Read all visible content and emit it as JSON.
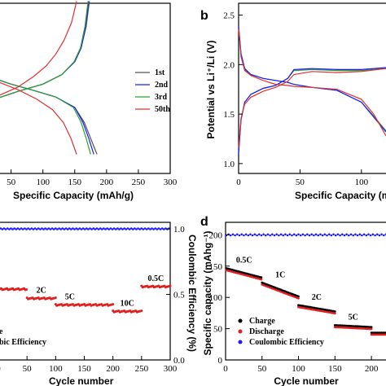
{
  "chart_data": [
    {
      "panel": "a",
      "type": "line",
      "xlabel": "Specific Capacity (mAh/g)",
      "xticks": [
        "50",
        "100",
        "150",
        "200",
        "250",
        "300"
      ],
      "xlim": [
        30,
        300
      ],
      "ylim": [
        1.0,
        2.6
      ],
      "legend_position": "right",
      "series": [
        {
          "name": "1st",
          "color": "#555555",
          "curves": [
            {
              "x": [
                0,
                30,
                50,
                80,
                120,
                150,
                165,
                175,
                185
              ],
              "y": [
                1.93,
                1.88,
                1.84,
                1.79,
                1.72,
                1.62,
                1.48,
                1.33,
                1.18
              ]
            },
            {
              "x": [
                0,
                30,
                60,
                100,
                130,
                150,
                160,
                168,
                173
              ],
              "y": [
                1.62,
                1.71,
                1.77,
                1.84,
                1.93,
                2.05,
                2.18,
                2.38,
                2.62
              ]
            }
          ]
        },
        {
          "name": "2nd",
          "color": "#1a1aff",
          "curves": [
            {
              "x": [
                0,
                30,
                50,
                80,
                120,
                150,
                163,
                172,
                180
              ],
              "y": [
                1.93,
                1.88,
                1.84,
                1.79,
                1.72,
                1.62,
                1.48,
                1.33,
                1.18
              ]
            },
            {
              "x": [
                0,
                30,
                60,
                100,
                130,
                150,
                160,
                167,
                172
              ],
              "y": [
                1.62,
                1.71,
                1.77,
                1.84,
                1.93,
                2.05,
                2.18,
                2.38,
                2.62
              ]
            }
          ]
        },
        {
          "name": "3rd",
          "color": "#2ca02c",
          "curves": [
            {
              "x": [
                0,
                30,
                50,
                80,
                120,
                148,
                160,
                168,
                175
              ],
              "y": [
                1.93,
                1.88,
                1.84,
                1.79,
                1.72,
                1.62,
                1.48,
                1.33,
                1.18
              ]
            },
            {
              "x": [
                0,
                30,
                60,
                100,
                130,
                149,
                159,
                166,
                171
              ],
              "y": [
                1.62,
                1.71,
                1.77,
                1.84,
                1.93,
                2.05,
                2.18,
                2.38,
                2.62
              ]
            }
          ]
        },
        {
          "name": "50th",
          "color": "#e03030",
          "curves": [
            {
              "x": [
                0,
                30,
                60,
                90,
                115,
                132,
                144,
                153
              ],
              "y": [
                1.93,
                1.86,
                1.79,
                1.7,
                1.6,
                1.48,
                1.33,
                1.18
              ]
            },
            {
              "x": [
                0,
                30,
                60,
                85,
                105,
                120,
                133,
                145,
                153
              ],
              "y": [
                1.62,
                1.73,
                1.81,
                1.91,
                2.01,
                2.12,
                2.25,
                2.42,
                2.62
              ]
            }
          ]
        }
      ]
    },
    {
      "panel": "b",
      "type": "line",
      "xlabel": "Specific Capacity (m",
      "ylabel": "Potential vs Li⁺/Li (V)",
      "xticks": [
        "0",
        "50",
        "100"
      ],
      "yticks": [
        "1.0",
        "1.5",
        "2.0",
        "2.5"
      ],
      "xlim": [
        0,
        120
      ],
      "ylim": [
        0.9,
        2.62
      ],
      "series": [
        {
          "name": "green",
          "color": "#2ca02c",
          "curves": [
            {
              "x": [
                0,
                2,
                5,
                10,
                20,
                30,
                40,
                45,
                60,
                80,
                100,
                110,
                120
              ],
              "y": [
                2.38,
                2.1,
                1.95,
                1.9,
                1.86,
                1.84,
                1.82,
                1.8,
                1.77,
                1.74,
                1.62,
                1.48,
                1.33
              ]
            },
            {
              "x": [
                0,
                2,
                5,
                10,
                20,
                30,
                40,
                45,
                60,
                80,
                100,
                120
              ],
              "y": [
                1.12,
                1.45,
                1.62,
                1.7,
                1.76,
                1.79,
                1.86,
                1.94,
                1.95,
                1.94,
                1.94,
                1.96
              ]
            }
          ]
        },
        {
          "name": "blue",
          "color": "#1a1aff",
          "curves": [
            {
              "x": [
                0,
                2,
                5,
                10,
                20,
                30,
                40,
                45,
                60,
                80,
                100,
                110,
                120
              ],
              "y": [
                2.39,
                2.11,
                1.96,
                1.9,
                1.86,
                1.84,
                1.82,
                1.8,
                1.77,
                1.74,
                1.62,
                1.47,
                1.32
              ]
            },
            {
              "x": [
                0,
                2,
                5,
                10,
                20,
                30,
                40,
                45,
                60,
                80,
                100,
                120
              ],
              "y": [
                1.1,
                1.44,
                1.62,
                1.7,
                1.76,
                1.79,
                1.86,
                1.95,
                1.96,
                1.95,
                1.95,
                1.97
              ]
            }
          ]
        },
        {
          "name": "red",
          "color": "#e03030",
          "curves": [
            {
              "x": [
                0,
                2,
                5,
                10,
                20,
                30,
                40,
                45,
                60,
                80,
                100,
                110,
                120
              ],
              "y": [
                2.36,
                2.08,
                1.94,
                1.89,
                1.84,
                1.8,
                1.79,
                1.78,
                1.77,
                1.75,
                1.65,
                1.5,
                1.28
              ]
            },
            {
              "x": [
                0,
                2,
                5,
                10,
                20,
                30,
                40,
                45,
                60,
                80,
                100,
                120
              ],
              "y": [
                1.16,
                1.46,
                1.6,
                1.67,
                1.73,
                1.77,
                1.83,
                1.9,
                1.93,
                1.92,
                1.93,
                1.96
              ]
            }
          ]
        }
      ]
    },
    {
      "panel": "c",
      "type": "scatter",
      "xlabel": "Cycle number",
      "ylabel": "Coulombic Efficiency (%)",
      "xticks": [
        "0",
        "50",
        "100",
        "150",
        "200",
        "250",
        "300"
      ],
      "yticks": [
        "0.0",
        "0.5",
        "1.0"
      ],
      "xlim": [
        0,
        300
      ],
      "y2lim": [
        0,
        1.05
      ],
      "annotations": [
        "2C",
        "5C",
        "10C",
        "0.5C"
      ],
      "legend_partial": [
        "e",
        "bic Efficiency"
      ],
      "rate_segments": [
        {
          "label": "",
          "x_start": 1,
          "x_end": 50,
          "level": 0.54
        },
        {
          "label": "2C",
          "x_start": 50,
          "x_end": 100,
          "level": 0.47
        },
        {
          "label": "5C",
          "x_start": 100,
          "x_end": 150,
          "level": 0.42
        },
        {
          "label": "",
          "x_start": 150,
          "x_end": 200,
          "level": 0.42
        },
        {
          "label": "10C",
          "x_start": 200,
          "x_end": 250,
          "level": 0.37
        },
        {
          "label": "0.5C",
          "x_start": 250,
          "x_end": 300,
          "level": 0.56
        }
      ],
      "efficiency": {
        "value": 1.0,
        "x_start": 1,
        "x_end": 300
      }
    },
    {
      "panel": "d",
      "type": "scatter",
      "xlabel": "Cycle number",
      "ylabel": "Specific capacity (mAhg⁻¹)",
      "xticks": [
        "0",
        "50",
        "100",
        "150",
        "200"
      ],
      "yticks": [
        "0",
        "50",
        "100",
        "150",
        "200"
      ],
      "xlim": [
        0,
        220
      ],
      "ylim": [
        0,
        220
      ],
      "annotations": [
        "0.5C",
        "1C",
        "2C",
        "5C"
      ],
      "legend": [
        "Charge",
        "Discharge",
        "Coulombic Efficiency"
      ],
      "rate_segments": [
        {
          "label": "0.5C",
          "x_start": 1,
          "x_end": 50,
          "start": 145,
          "end": 130
        },
        {
          "label": "1C",
          "x_start": 50,
          "x_end": 100,
          "start": 122,
          "end": 100
        },
        {
          "label": "2C",
          "x_start": 100,
          "x_end": 150,
          "start": 86,
          "end": 76
        },
        {
          "label": "5C",
          "x_start": 150,
          "x_end": 200,
          "start": 54,
          "end": 51
        },
        {
          "label": "",
          "x_start": 200,
          "x_end": 220,
          "start": 42,
          "end": 42
        }
      ],
      "efficiency": {
        "value": 200,
        "x_start": 1,
        "x_end": 220
      }
    }
  ],
  "panel_labels": {
    "b": "b",
    "d": "d"
  },
  "colors": {
    "charge": "#000000",
    "discharge": "#e02020",
    "efficiency": "#1a1aff"
  }
}
